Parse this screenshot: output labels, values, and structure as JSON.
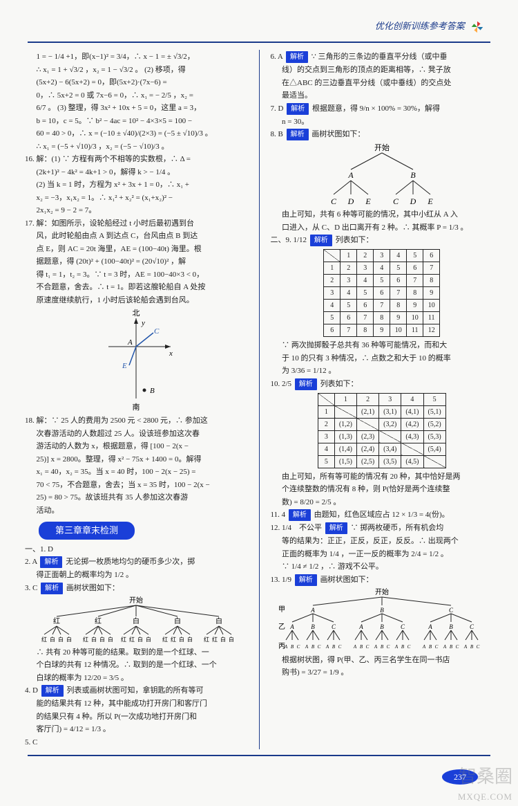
{
  "header": {
    "title": "优化创新训练参考答案"
  },
  "left": {
    "l1": "1 = − 1/4 +1，即(x−1)² = 3/4，∴ x − 1 = ± √3/2，",
    "l2": "∴ x₁ = 1 + √3/2 ，x₂ = 1 − √3/2 。 (2) 移项，得",
    "l3": "(5x+2) − 6(5x+2) = 0，即(5x+2)·(7x−6) =",
    "l4": "0，∴ 5x+2 = 0 或 7x−6 = 0，∴ x₁ = − 2/5 ，x₂ =",
    "l5": "6/7 。 (3) 整理，得 3x² + 10x + 5 = 0，这里 a = 3，",
    "l6": "b = 10，c = 5。∵ b² − 4ac = 10² − 4×3×5 = 100 −",
    "l7": "60 = 40 > 0，∴ x = (−10 ± √40)/(2×3) = (−5 ± √10)/3 。",
    "l8": "∴ x₁ = (−5 + √10)/3 ，x₂ = (−5 − √10)/3 。",
    "q16a": "16. 解：(1) ∵ 方程有两个不相等的实数根，∴ Δ =",
    "q16b": "(2k+1)² − 4k² = 4k+1 > 0，解得 k > − 1/4 。",
    "q16c": "(2) 当 k = 1 时，方程为 x² + 3x + 1 = 0，∴ x₁ +",
    "q16d": "x₂ = −3，x₁x₂ = 1。∴ x₁² + x₂² = (x₁+x₂)² −",
    "q16e": "2x₁x₂ = 9 − 2 = 7。",
    "q17a": "17. 解：如图所示，设轮船经过 t 小时后最初遇到台",
    "q17b": "风，此时轮船由点 A 到达点 C，台风由点 B 到达",
    "q17c": "点 E，则 AC = 20t 海里，AE = (100−40t) 海里。根",
    "q17d": "据题意，得 (20t)² + (100−40t)² = (20√10)² ，解",
    "q17e": "得 t₁ = 1，t₂ = 3。∵ t = 3 时，AE = 100−40×3 < 0，",
    "q17f": "不合题意，舍去。∴ t = 1。即若这艘轮船自 A 处按",
    "q17g": "原速度继续航行，1 小时后该轮船会遇到台风。",
    "compass": {
      "north": "北",
      "south": "南"
    },
    "q18a": "18. 解：∵ 25 人的费用为 2500 元 < 2800 元，∴ 参加这",
    "q18b": "次春游活动的人数超过 25 人。设该班参加这次春",
    "q18c": "游活动的人数为 x，根据题意，得 [100 − 2(x −",
    "q18d": "25)] x = 2800。整理，得 x² − 75x + 1400 = 0。解得",
    "q18e": "x₁ = 40，x₂ = 35。当 x = 40 时，100 − 2(x − 25) =",
    "q18f": "70 < 75，不合题意，舍去；当 x = 35 时，100 − 2(x −",
    "q18g": "25) = 80 > 75。故该班共有 35 人参加这次春游",
    "q18h": "活动。",
    "chapter": "第三章章末检测",
    "s1": "一、1. D",
    "s2a": "2. A",
    "s2b": "无论掷一枚质地均匀的硬币多少次，掷",
    "s2c": "得正面朝上的概率均为 1/2 。",
    "s3a": "3. C",
    "s3b": "画树状图如下：",
    "tree1start": "开始",
    "tree1c": {
      "red": "红",
      "white": "白"
    },
    "s3c": "∴ 共有 20 种等可能的结果。取到的是一个红球、一",
    "s3d": "个白球的共有 12 种情况。∴ 取到的是一个红球、一个",
    "s3e": "白球的概率为 12/20 = 3/5 。",
    "s4a": "4. D",
    "s4b": "列表或画树状图可知，拿钥匙的所有等可",
    "s4c": "能的结果共有 12 种，其中能成功打开房门和客厅门",
    "s4d": "的结果只有 4 种。所以 P(一次成功地打开房门和",
    "s4e": "客厅门) = 4/12 = 1/3 。",
    "s5": "5. C"
  },
  "right": {
    "s6a": "6. A",
    "s6b": "∵ 三角形的三条边的垂直平分线（或中垂",
    "s6c": "线）的交点到三角形的顶点的距离相等，∴ 凳子放",
    "s6d": "在△ABC 的三边垂直平分线（或中垂线）的交点处",
    "s6e": "最适当。",
    "s7a": "7. D",
    "s7b": "根据题意，得 9/n × 100% = 30%，解得",
    "s7c": "n = 30。",
    "s8a": "8. B",
    "s8b": "画树状图如下：",
    "tree2start": "开始",
    "tree2": {
      "A": "A",
      "B": "B",
      "C": "C",
      "D": "D",
      "E": "E"
    },
    "s8c": "由上可知，共有 6 种等可能的情况，其中小红从 A 入",
    "s8d": "口进入，从 C、D 出口离开有 2 种。∴ 其概率 P = 1/3 。",
    "s9a": "二、9. 1/12",
    "s9b": "列表如下：",
    "table1": {
      "cols": [
        "1",
        "2",
        "3",
        "4",
        "5",
        "6"
      ],
      "rows": [
        [
          "1",
          "2",
          "3",
          "4",
          "5",
          "6",
          "7"
        ],
        [
          "2",
          "3",
          "4",
          "5",
          "6",
          "7",
          "8"
        ],
        [
          "3",
          "4",
          "5",
          "6",
          "7",
          "8",
          "9"
        ],
        [
          "4",
          "5",
          "6",
          "7",
          "8",
          "9",
          "10"
        ],
        [
          "5",
          "6",
          "7",
          "8",
          "9",
          "10",
          "11"
        ],
        [
          "6",
          "7",
          "8",
          "9",
          "10",
          "11",
          "12"
        ]
      ]
    },
    "s9c": "∵ 两次抛掷骰子总共有 36 种等可能情况，而和大",
    "s9d": "于 10 的只有 3 种情况，∴ 点数之和大于 10 的概率",
    "s9e": "为 3/36 = 1/12 。",
    "s10a": "10. 2/5",
    "s10b": "列表如下：",
    "table2": {
      "cols": [
        "1",
        "2",
        "3",
        "4",
        "5"
      ],
      "rows": [
        [
          "1",
          "",
          "(2,1)",
          "(3,1)",
          "(4,1)",
          "(5,1)"
        ],
        [
          "2",
          "(1,2)",
          "",
          "(3,2)",
          "(4,2)",
          "(5,2)"
        ],
        [
          "3",
          "(1,3)",
          "(2,3)",
          "",
          "(4,3)",
          "(5,3)"
        ],
        [
          "4",
          "(1,4)",
          "(2,4)",
          "(3,4)",
          "",
          "(5,4)"
        ],
        [
          "5",
          "(1,5)",
          "(2,5)",
          "(3,5)",
          "(4,5)",
          ""
        ]
      ]
    },
    "s10c": "由上可知，所有等可能的情况有 20 种，其中恰好是两",
    "s10d": "个连续整数的情况有 8 种，则 P(恰好是两个连续整",
    "s10e": "数) = 8/20 = 2/5 。",
    "s11a": "11. 4",
    "s11b": "由题知，红色区域应占 12 × 1/3 = 4(份)。",
    "s12a": "12. 1/4　不公平",
    "s12b": "∵ 掷两枚硬币，所有机会均",
    "s12c": "等的结果为：正正，正反，反正，反反。∴ 出现两个",
    "s12d": "正面的概率为 1/4 ，一正一反的概率为 2/4 = 1/2 。",
    "s12e": "∵ 1/4 ≠ 1/2 ，∴ 游戏不公平。",
    "s13a": "13. 1/9",
    "s13b": "画树状图如下：",
    "tree3start": "开始",
    "tree3labels": {
      "jia": "甲",
      "yi": "乙",
      "bing": "丙",
      "A": "A",
      "B": "B",
      "C": "C"
    },
    "s13c": "根据树状图，得 P(甲、乙、丙三名学生在同一书店",
    "s13d": "购书) = 3/27 = 1/9 。"
  },
  "labels": {
    "analysis": "解析"
  },
  "pageNumber": "237",
  "watermark": {
    "cn": "智桑圈",
    "en": "MXQE.COM"
  }
}
